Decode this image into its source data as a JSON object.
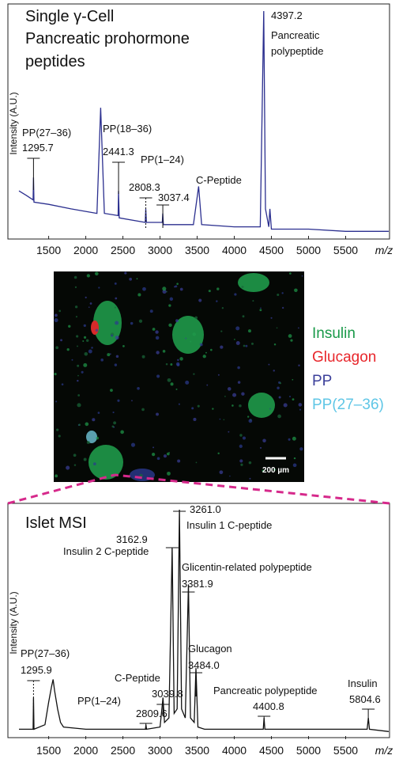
{
  "chart_data": [
    {
      "type": "line",
      "title": [
        "Single γ-Cell",
        "Pancreatic prohormone",
        "peptides"
      ],
      "ylabel": "Intensity (A.U.)",
      "xlabel": "m/z",
      "xlim": [
        1100,
        6080
      ],
      "ylim": [
        0,
        100
      ],
      "xticks": [
        1500,
        2000,
        2500,
        3000,
        3500,
        4000,
        4500,
        5000,
        5500
      ],
      "series": [
        {
          "color": "#2b2f8f",
          "x": [
            1100,
            1200,
            1290,
            1296,
            1302,
            1500,
            1800,
            2150,
            2200,
            2250,
            2435,
            2441,
            2450,
            2800,
            2808,
            2816,
            3030,
            3037,
            3045,
            3450,
            3520,
            3560,
            4000,
            4350,
            4397,
            4420,
            4465,
            4480,
            4500,
            5000,
            5500,
            6080
          ],
          "values": [
            20,
            18,
            16,
            26,
            15,
            14,
            12,
            10,
            57,
            10,
            9,
            20,
            8,
            6,
            12,
            6,
            6,
            10,
            5,
            5,
            22,
            5,
            4,
            4,
            100,
            12,
            4,
            12,
            3,
            3,
            2,
            2
          ]
        }
      ],
      "annotations": [
        {
          "name": [
            "PP(27–36)"
          ],
          "mz": 1295.7
        },
        {
          "name": [
            "PP(18–36)"
          ],
          "mz": 2441.3
        },
        {
          "name": [
            "PP(1–24)"
          ],
          "mz": 2808.3
        },
        {
          "name": [
            "C-Peptide"
          ]
        },
        {
          "mz": 3037.4
        },
        {
          "name": [
            "Pancreatic",
            "polypeptide"
          ],
          "mz": 4397.2
        }
      ]
    },
    {
      "type": "line",
      "title": [
        "Islet MSI"
      ],
      "ylabel": "Intensity (A.U.)",
      "xlabel": "m/z",
      "xlim": [
        1100,
        6080
      ],
      "ylim": [
        0,
        100
      ],
      "xticks": [
        1500,
        2000,
        2500,
        3000,
        3500,
        4000,
        4500,
        5000,
        5500
      ],
      "series": [
        {
          "color": "#111111",
          "x": [
            1100,
            1290,
            1296,
            1302,
            1450,
            1500,
            1540,
            1560,
            1580,
            1620,
            1660,
            1700,
            2000,
            2500,
            2804,
            2810,
            2818,
            3000,
            3040,
            3060,
            3120,
            3163,
            3190,
            3230,
            3261,
            3290,
            3340,
            3382,
            3410,
            3460,
            3484,
            3510,
            3600,
            4390,
            4401,
            4412,
            5790,
            5805,
            5820,
            6080
          ],
          "values": [
            3,
            3,
            17,
            3,
            5,
            15,
            22,
            25,
            20,
            12,
            6,
            4,
            3,
            3,
            3,
            5,
            3,
            4,
            17,
            6,
            8,
            83,
            10,
            12,
            100,
            12,
            8,
            67,
            8,
            6,
            30,
            4,
            3,
            3,
            8,
            3,
            3,
            8,
            3,
            2
          ]
        }
      ],
      "annotations": [
        {
          "name": [
            "PP(27–36)"
          ],
          "mz": 1295.9
        },
        {
          "name": [
            "PP(1–24)"
          ],
          "mz": 2809.6
        },
        {
          "name": [
            "C-Peptide"
          ],
          "mz": 3039.8
        },
        {
          "name": [
            "Insulin 2 C-peptide"
          ],
          "mz": 3162.9
        },
        {
          "name": [
            "Insulin 1 C-peptide"
          ],
          "mz": {
            "value": 3261,
            "label": "3261.0"
          }
        },
        {
          "name": [
            "Glicentin-related polypeptide"
          ],
          "mz": 3381.9
        },
        {
          "name": [
            "Glucagon"
          ],
          "mz": {
            "value": 3484,
            "label": "3484.0"
          }
        },
        {
          "name": [
            "Pancreatic polypeptide"
          ],
          "mz": 4400.8
        },
        {
          "name": [
            "Insulin"
          ],
          "mz": 5804.6
        }
      ]
    }
  ],
  "image": {
    "legend": [
      {
        "name": "Insulin",
        "color": "#1a9a4a"
      },
      {
        "name": "Glucagon",
        "color": "#e8262b"
      },
      {
        "name": "PP",
        "color": "#3b3f9a"
      },
      {
        "name": "PP(27–36)",
        "color": "#5fc6e6"
      }
    ],
    "scale_bar": "200 µm"
  }
}
